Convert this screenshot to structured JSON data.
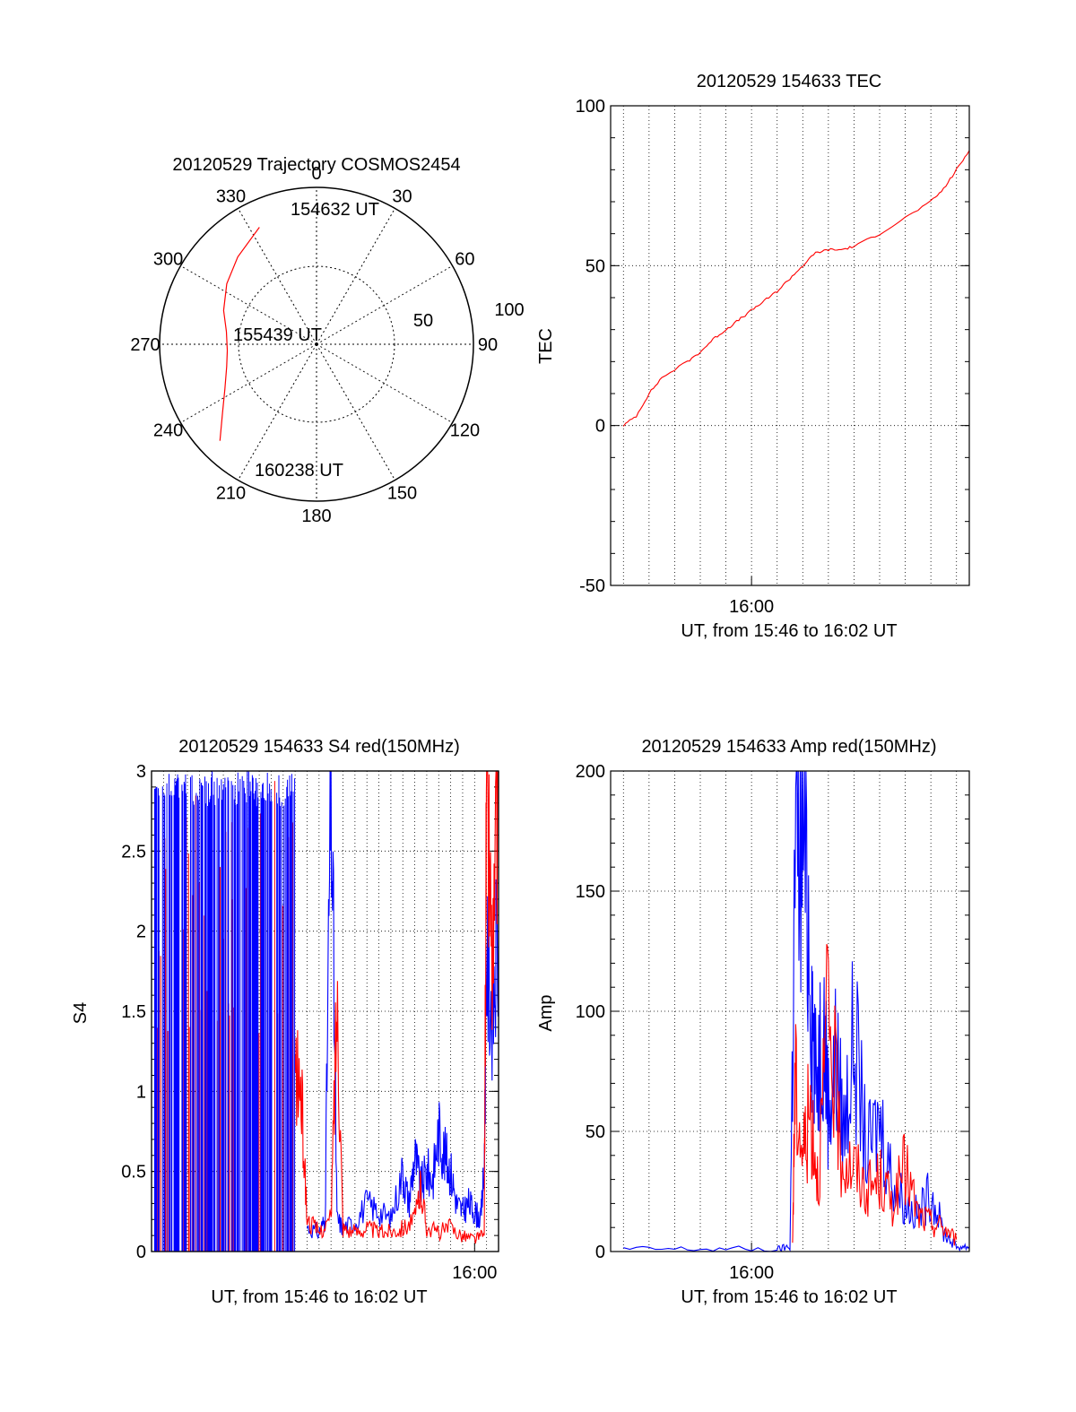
{
  "colors": {
    "red": "#ff0000",
    "blue": "#0000ff",
    "axis": "#000000",
    "grid": "#000000"
  },
  "chart_data": [
    {
      "type": "polar",
      "title": "20120529 Trajectory COSMOS2454",
      "angle_labels": [
        "0",
        "30",
        "60",
        "90",
        "120",
        "150",
        "180",
        "210",
        "240",
        "270",
        "300",
        "330"
      ],
      "radius_labels": [
        "50",
        "100"
      ],
      "rlim": [
        0,
        100
      ],
      "grid": true,
      "track": {
        "color": "red",
        "points": [
          {
            "az": 334,
            "r": 83
          },
          {
            "az": 318,
            "r": 75
          },
          {
            "az": 304,
            "r": 69
          },
          {
            "az": 290,
            "r": 63
          },
          {
            "az": 278,
            "r": 58
          },
          {
            "az": 266,
            "r": 57
          },
          {
            "az": 256,
            "r": 59
          },
          {
            "az": 244,
            "r": 65
          },
          {
            "az": 234,
            "r": 74
          },
          {
            "az": 225,
            "r": 87
          }
        ]
      },
      "annotations": [
        {
          "text": "154632 UT",
          "az": 334,
          "r": 83
        },
        {
          "text": "155439 UT",
          "az": 0,
          "r": 0
        },
        {
          "text": "160238 UT",
          "az": 225,
          "r": 87
        }
      ]
    },
    {
      "type": "line",
      "title": "20120529 154633 TEC",
      "xlabel": "UT, from 15:46 to 16:02 UT",
      "ylabel": "TEC",
      "xlim_minutes": [
        15.45,
        16.85
      ],
      "ylim": [
        -50,
        100
      ],
      "y_ticks": [
        "-50",
        "0",
        "50",
        "100"
      ],
      "x_tick_labels": [
        {
          "label": "16:00",
          "minute": 16.0
        }
      ],
      "grid": true,
      "series": [
        {
          "color": "red",
          "points": [
            [
              15.5,
              0
            ],
            [
              15.55,
              3
            ],
            [
              15.6,
              10
            ],
            [
              15.65,
              15
            ],
            [
              15.75,
              20
            ],
            [
              15.8,
              23
            ],
            [
              15.85,
              27
            ],
            [
              15.9,
              30
            ],
            [
              15.95,
              33
            ],
            [
              16.0,
              36
            ],
            [
              16.05,
              39
            ],
            [
              16.1,
              42
            ],
            [
              16.15,
              46
            ],
            [
              16.2,
              50
            ],
            [
              16.25,
              54
            ],
            [
              16.3,
              55
            ],
            [
              16.35,
              55
            ],
            [
              16.4,
              56
            ],
            [
              16.5,
              60
            ],
            [
              16.6,
              65
            ],
            [
              16.7,
              70
            ],
            [
              16.75,
              74
            ],
            [
              16.8,
              80
            ],
            [
              16.85,
              86
            ]
          ]
        }
      ]
    },
    {
      "type": "line",
      "title": "20120529 154633 S4 red(150MHz)",
      "xlabel": "UT, from 15:46 to 16:02 UT",
      "ylabel": "S4",
      "xlim_minutes": [
        13.3,
        16.2
      ],
      "ylim": [
        0,
        3
      ],
      "y_ticks": [
        "0",
        "0.5",
        "1",
        "1.5",
        "2",
        "2.5",
        "3"
      ],
      "x_tick_labels": [
        {
          "label": "16:00",
          "minute": 16.0
        }
      ],
      "grid": true,
      "series": [
        {
          "name": "",
          "color": "blue",
          "points": [
            [
              14.6,
              0.15
            ],
            [
              14.7,
              0.12
            ],
            [
              14.75,
              0.2
            ],
            [
              14.8,
              3.0
            ],
            [
              14.85,
              0.2
            ],
            [
              14.9,
              0.15
            ],
            [
              15.0,
              0.18
            ],
            [
              15.1,
              0.3
            ],
            [
              15.2,
              0.25
            ],
            [
              15.3,
              0.2
            ],
            [
              15.4,
              0.5
            ],
            [
              15.45,
              0.3
            ],
            [
              15.5,
              0.6
            ],
            [
              15.55,
              0.4
            ],
            [
              15.6,
              0.5
            ],
            [
              15.65,
              0.45
            ],
            [
              15.7,
              0.75
            ],
            [
              15.75,
              0.6
            ],
            [
              15.8,
              0.5
            ],
            [
              15.85,
              0.3
            ],
            [
              15.9,
              0.25
            ],
            [
              15.95,
              0.3
            ],
            [
              16.0,
              0.25
            ],
            [
              16.05,
              0.2
            ],
            [
              16.08,
              0.5
            ],
            [
              16.1,
              1.8
            ],
            [
              16.15,
              1.5
            ],
            [
              16.2,
              2.0
            ]
          ]
        },
        {
          "name": "",
          "color": "red",
          "points": [
            [
              14.5,
              1.1
            ],
            [
              14.55,
              1.0
            ],
            [
              14.6,
              0.2
            ],
            [
              14.7,
              0.12
            ],
            [
              14.8,
              0.2
            ],
            [
              14.85,
              1.6
            ],
            [
              14.9,
              0.15
            ],
            [
              15.0,
              0.12
            ],
            [
              15.1,
              0.15
            ],
            [
              15.2,
              0.12
            ],
            [
              15.3,
              0.13
            ],
            [
              15.4,
              0.15
            ],
            [
              15.5,
              0.2
            ],
            [
              15.55,
              0.4
            ],
            [
              15.6,
              0.15
            ],
            [
              15.7,
              0.12
            ],
            [
              15.8,
              0.15
            ],
            [
              15.9,
              0.1
            ],
            [
              16.0,
              0.08
            ],
            [
              16.08,
              0.1
            ],
            [
              16.1,
              3.0
            ],
            [
              16.15,
              1.7
            ],
            [
              16.2,
              3.0
            ]
          ]
        }
      ]
    },
    {
      "type": "line",
      "title": "20120529 154633 Amp red(150MHz)",
      "xlabel": "UT, from 15:46 to 16:02 UT",
      "ylabel": "Amp",
      "xlim_minutes": [
        15.45,
        16.85
      ],
      "ylim": [
        0,
        200
      ],
      "y_ticks": [
        "0",
        "50",
        "100",
        "150",
        "200"
      ],
      "x_tick_labels": [
        {
          "label": "16:00",
          "minute": 16.0
        }
      ],
      "grid": true,
      "series": [
        {
          "name": "",
          "color": "blue",
          "points": [
            [
              15.5,
              1
            ],
            [
              15.8,
              1
            ],
            [
              16.1,
              1
            ],
            [
              16.15,
              2
            ],
            [
              16.17,
              160
            ],
            [
              16.2,
              185
            ],
            [
              16.23,
              120
            ],
            [
              16.25,
              70
            ],
            [
              16.28,
              100
            ],
            [
              16.3,
              60
            ],
            [
              16.33,
              80
            ],
            [
              16.36,
              50
            ],
            [
              16.4,
              90
            ],
            [
              16.45,
              40
            ],
            [
              16.5,
              55
            ],
            [
              16.55,
              30
            ],
            [
              16.6,
              20
            ],
            [
              16.65,
              15
            ],
            [
              16.7,
              25
            ],
            [
              16.75,
              8
            ],
            [
              16.8,
              2
            ],
            [
              16.85,
              2
            ]
          ]
        },
        {
          "name": "",
          "color": "red",
          "points": [
            [
              16.16,
              2
            ],
            [
              16.17,
              70
            ],
            [
              16.2,
              40
            ],
            [
              16.23,
              60
            ],
            [
              16.26,
              30
            ],
            [
              16.3,
              100
            ],
            [
              16.35,
              40
            ],
            [
              16.4,
              35
            ],
            [
              16.45,
              25
            ],
            [
              16.5,
              30
            ],
            [
              16.55,
              20
            ],
            [
              16.6,
              35
            ],
            [
              16.65,
              15
            ],
            [
              16.7,
              12
            ],
            [
              16.75,
              10
            ],
            [
              16.8,
              5
            ]
          ]
        }
      ]
    }
  ]
}
